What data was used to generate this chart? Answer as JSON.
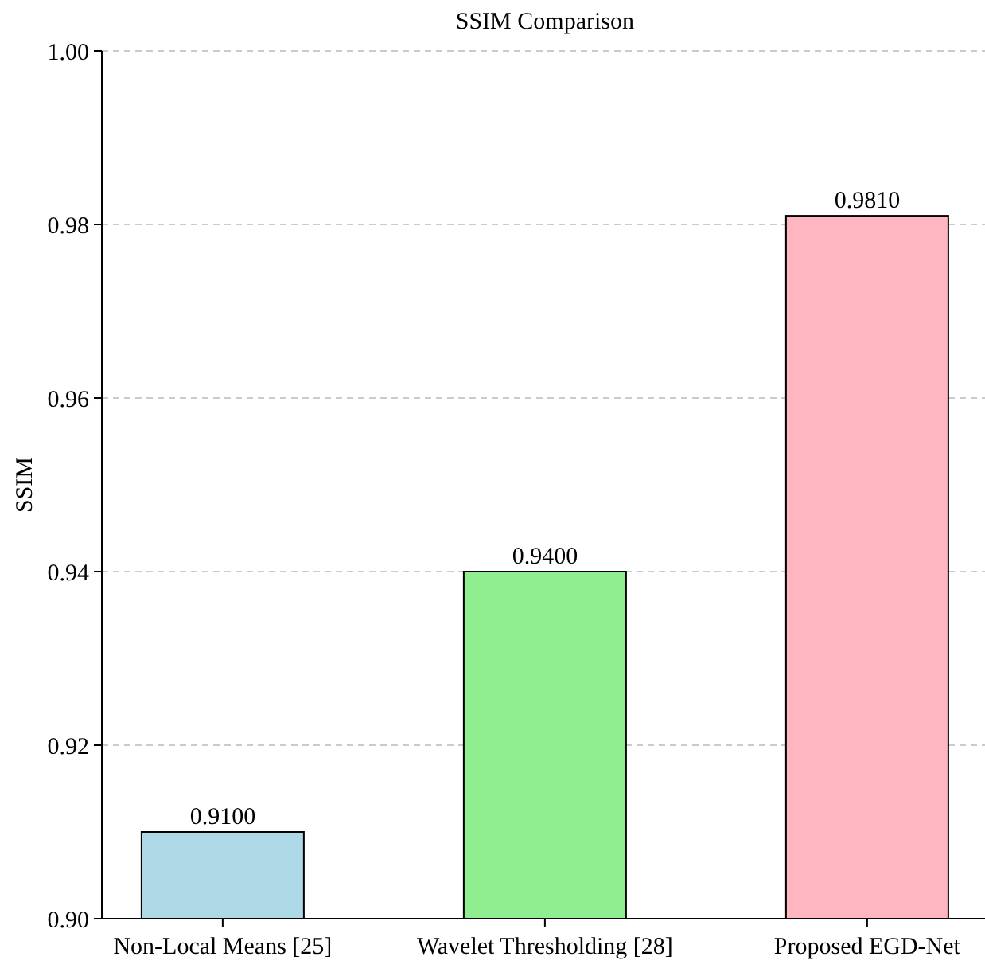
{
  "chart_data": {
    "type": "bar",
    "title": "SSIM Comparison",
    "ylabel": "SSIM",
    "categories": [
      "Non-Local Means [25]",
      "Wavelet Thresholding [28]",
      "Proposed EGD-Net"
    ],
    "values": [
      0.91,
      0.94,
      0.981
    ],
    "colors": [
      "#add8e6",
      "#90ee90",
      "#ffb6c1"
    ],
    "value_labels": [
      "0.9100",
      "0.9400",
      "0.9810"
    ],
    "ylim": [
      0.9,
      1.0
    ],
    "yticks": [
      {
        "value": 0.9,
        "label": "0.90"
      },
      {
        "value": 0.92,
        "label": "0.92"
      },
      {
        "value": 0.94,
        "label": "0.94"
      },
      {
        "value": 0.96,
        "label": "0.96"
      },
      {
        "value": 0.98,
        "label": "0.98"
      },
      {
        "value": 1.0,
        "label": "1.00"
      }
    ],
    "grid": "y"
  }
}
